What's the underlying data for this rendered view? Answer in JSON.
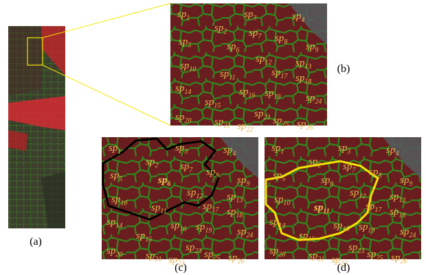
{
  "figure": {
    "label_prefix": "sp",
    "panels": [
      {
        "caption": "(a)"
      },
      {
        "caption": "(b)",
        "subscripts": [
          "1",
          "3",
          "4",
          "2",
          "7",
          "5",
          "8",
          "6",
          "9",
          "12",
          "13",
          "10",
          "17",
          "11",
          "18",
          "14",
          "16",
          "19",
          "24",
          "15",
          "23",
          "20",
          "21",
          "25",
          "26",
          "22"
        ]
      },
      {
        "caption": "(c)",
        "subscripts": [
          "1",
          "3",
          "4",
          "2",
          "7",
          "5",
          "8",
          "6",
          "9",
          "12",
          "13",
          "10",
          "17",
          "11",
          "18",
          "14",
          "16",
          "19",
          "24",
          "15",
          "23",
          "20",
          "21",
          "25",
          "26",
          "22"
        ]
      },
      {
        "caption": "(d)",
        "subscripts": [
          "1",
          "3",
          "4",
          "2",
          "7",
          "5",
          "8",
          "6",
          "9",
          "12",
          "13",
          "10",
          "17",
          "11",
          "18",
          "14",
          "16",
          "19",
          "24",
          "15",
          "23",
          "20",
          "21",
          "25",
          "26",
          "22"
        ]
      }
    ]
  }
}
